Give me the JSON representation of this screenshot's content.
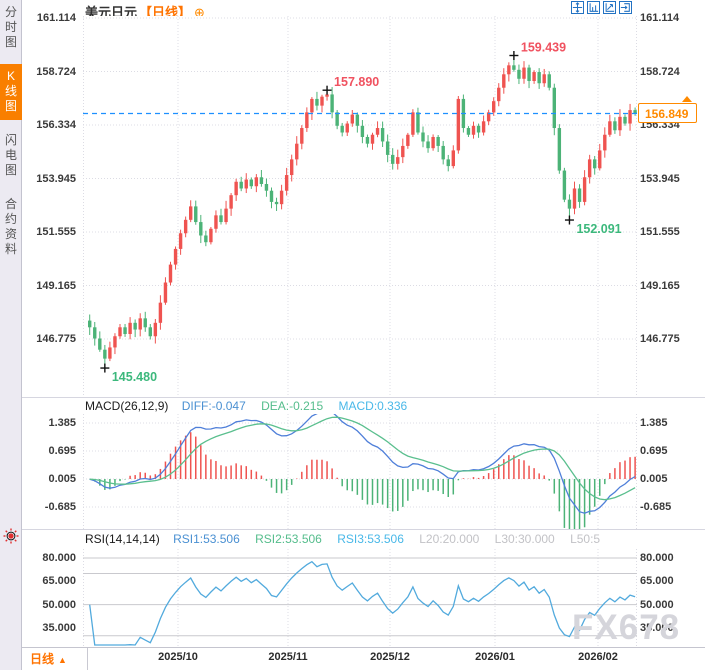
{
  "header": {
    "symbol": "美元日元",
    "period_tag": "【日线】",
    "add_icon": "⊕"
  },
  "toolbar": {
    "icons": [
      "pan-tool-icon",
      "zoom-y-axis-icon",
      "zoom-x-axis-icon",
      "exit-chart-icon"
    ]
  },
  "sidebar": {
    "tabs": [
      {
        "label": "分时图",
        "active": false
      },
      {
        "label": "K线图",
        "active": true
      },
      {
        "label": "闪电图",
        "active": false
      },
      {
        "label": "合约资料",
        "active": false
      }
    ]
  },
  "indicators": {
    "macd": {
      "title": "MACD(26,12,9)",
      "diff_label": "DIFF:-0.047",
      "dea_label": "DEA:-0.215",
      "macd_label": "MACD:0.336"
    },
    "rsi": {
      "title": "RSI(14,14,14)",
      "rsi1_label": "RSI1:53.506",
      "rsi2_label": "RSI2:53.506",
      "rsi3_label": "RSI3:53.506",
      "l20_label": "L20:20.000",
      "l30_label": "L30:30.000",
      "l50_label": "L50:5"
    }
  },
  "bottom_bar": {
    "period_label": "日线",
    "period_arrow": "▲"
  },
  "watermark": "FX678",
  "colors": {
    "up": "#ef5350",
    "down": "#4cb377",
    "diff_line": "#4f7fd9",
    "dea_line": "#5abf8e",
    "rsi_line": "#52aadd",
    "current_line": "#1e90ff",
    "accent": "#ff7300",
    "annotation_high": "#f05260",
    "annotation_low": "#3cb87c",
    "grid_dotted": "#dcdce4",
    "grid_solid": "#c9c9ce"
  },
  "chart_data": {
    "type": "candlestick",
    "title": "美元日元 日线",
    "symbol": "美元日元",
    "period": "日线",
    "current_price": 156.849,
    "current_price_label": "156.849",
    "price_axis_ticks": [
      "161.114",
      "158.724",
      "156.334",
      "153.945",
      "151.555",
      "149.165",
      "146.775"
    ],
    "macd_axis_ticks": [
      "1.385",
      "0.695",
      "0.005",
      "-0.685"
    ],
    "rsi_axis_ticks": [
      "80.000",
      "65.000",
      "50.000",
      "35.000"
    ],
    "x_axis_ticks": [
      "2025/10",
      "2025/11",
      "2025/12",
      "2026/01",
      "2026/02"
    ],
    "main_ylim": [
      144.3,
      161.2
    ],
    "macd_ylim": [
      -0.97,
      1.6
    ],
    "rsi_ylim": [
      17,
      86
    ],
    "rsi_levels": [
      80,
      70,
      50,
      30
    ],
    "macd_params": [
      26,
      12,
      9
    ],
    "rsi_params": [
      14,
      14,
      14
    ],
    "annotations": [
      {
        "label": "157.890",
        "price": 157.89,
        "index": 47,
        "type": "high"
      },
      {
        "label": "159.439",
        "price": 159.439,
        "index": 84,
        "type": "high"
      },
      {
        "label": "145.480",
        "price": 145.48,
        "index": 3,
        "type": "low"
      },
      {
        "label": "152.091",
        "price": 152.091,
        "index": 95,
        "type": "low"
      }
    ],
    "open_first": 147.6,
    "closes": [
      147.3,
      146.8,
      146.3,
      145.9,
      146.4,
      146.9,
      147.3,
      147.0,
      147.5,
      147.2,
      147.7,
      147.3,
      146.9,
      147.5,
      148.4,
      149.3,
      150.1,
      150.8,
      151.5,
      152.1,
      152.7,
      152.0,
      151.4,
      151.1,
      151.7,
      152.3,
      152.0,
      152.6,
      153.2,
      153.8,
      153.5,
      153.9,
      153.6,
      154.0,
      153.7,
      153.4,
      152.9,
      152.8,
      153.4,
      154.1,
      154.8,
      155.5,
      156.2,
      156.9,
      157.5,
      157.2,
      157.6,
      157.7,
      156.9,
      156.3,
      156.0,
      156.4,
      156.8,
      156.3,
      155.8,
      155.5,
      155.9,
      156.2,
      155.6,
      155.0,
      154.6,
      154.9,
      155.4,
      155.9,
      156.9,
      156.0,
      155.6,
      155.3,
      155.8,
      155.4,
      154.8,
      154.5,
      155.2,
      157.5,
      156.2,
      155.9,
      156.3,
      156.0,
      156.5,
      156.9,
      157.4,
      158.0,
      158.6,
      159.0,
      158.8,
      158.4,
      158.9,
      158.3,
      158.7,
      158.2,
      158.6,
      158.0,
      156.2,
      154.3,
      153.0,
      152.6,
      153.5,
      152.9,
      154.0,
      154.8,
      154.4,
      155.2,
      155.9,
      156.5,
      156.1,
      156.7,
      156.4,
      157.0,
      156.849
    ],
    "extreme_overrides": {
      "3": {
        "low": 145.48
      },
      "47": {
        "high": 157.89
      },
      "84": {
        "high": 159.439
      },
      "95": {
        "low": 152.091
      }
    }
  }
}
